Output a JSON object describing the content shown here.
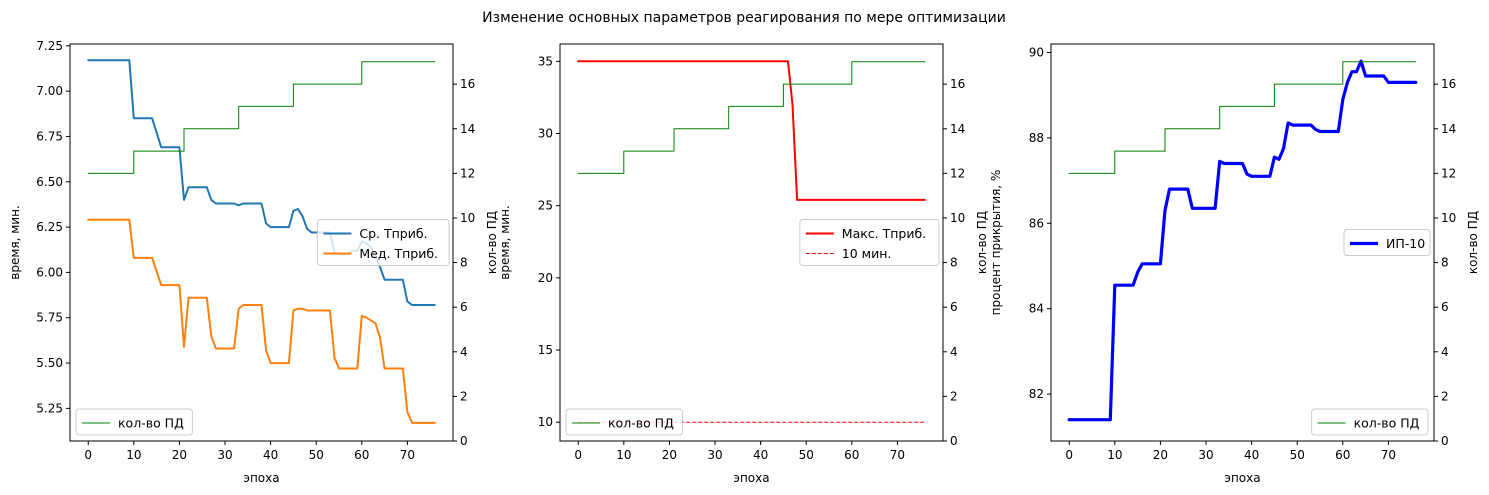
{
  "figure_title": "Изменение основных параметров реагирования по мере оптимизации",
  "chart_data": [
    {
      "type": "line",
      "xlabel": "эпоха",
      "ylabel": "время, мин.",
      "ylabel_right": "кол-во ПД",
      "xlim": [
        -4,
        80
      ],
      "ylim": [
        5.07,
        7.26
      ],
      "ylim_right": [
        0,
        17.8
      ],
      "xticks": [
        "0",
        "10",
        "20",
        "30",
        "40",
        "50",
        "60",
        "70"
      ],
      "yticks": [
        "5.25",
        "5.50",
        "5.75",
        "6.00",
        "6.25",
        "6.50",
        "6.75",
        "7.00",
        "7.25"
      ],
      "yticks_right": [
        "0",
        "2",
        "4",
        "6",
        "8",
        "10",
        "12",
        "14",
        "16"
      ],
      "legend_upper": "center-right",
      "legend_lower": "lower-left",
      "series": [
        {
          "name": "Ср. Тприб.",
          "color": "#1f77b4",
          "width": 2,
          "x": [
            0,
            9,
            10,
            14,
            16,
            20,
            21,
            22,
            26,
            27,
            28,
            32,
            33,
            34,
            38,
            39,
            40,
            44,
            45,
            46,
            47,
            48,
            49,
            53,
            54,
            55,
            57,
            58,
            59,
            60,
            61,
            62,
            64,
            65,
            69,
            70,
            71,
            76
          ],
          "y": [
            7.17,
            7.17,
            6.85,
            6.85,
            6.69,
            6.69,
            6.4,
            6.47,
            6.47,
            6.4,
            6.38,
            6.38,
            6.37,
            6.38,
            6.38,
            6.27,
            6.25,
            6.25,
            6.34,
            6.35,
            6.31,
            6.24,
            6.22,
            6.22,
            6.11,
            6.1,
            6.1,
            6.12,
            6.12,
            6.17,
            6.16,
            6.14,
            6.03,
            5.96,
            5.96,
            5.84,
            5.82,
            5.82
          ]
        },
        {
          "name": "Мед. Тприб.",
          "color": "#ff7f0e",
          "width": 2,
          "x": [
            0,
            9,
            10,
            14,
            16,
            20,
            21,
            22,
            26,
            27,
            28,
            32,
            33,
            34,
            38,
            39,
            40,
            44,
            45,
            46,
            47,
            48,
            53,
            54,
            55,
            59,
            60,
            61,
            63,
            64,
            65,
            69,
            70,
            71,
            76
          ],
          "y": [
            6.29,
            6.29,
            6.08,
            6.08,
            5.93,
            5.93,
            5.59,
            5.86,
            5.86,
            5.65,
            5.58,
            5.58,
            5.8,
            5.82,
            5.82,
            5.57,
            5.5,
            5.5,
            5.79,
            5.8,
            5.8,
            5.79,
            5.79,
            5.53,
            5.47,
            5.47,
            5.76,
            5.75,
            5.72,
            5.64,
            5.47,
            5.47,
            5.23,
            5.17,
            5.17
          ]
        },
        {
          "name": "кол-во ПД",
          "color": "#008000",
          "width": 1,
          "axis": "right",
          "step": true,
          "x": [
            0,
            10,
            21,
            33,
            45,
            60,
            76
          ],
          "y": [
            12,
            13,
            14,
            15,
            16,
            17,
            17
          ]
        }
      ]
    },
    {
      "type": "line",
      "xlabel": "эпоха",
      "ylabel": "время, мин.",
      "ylabel_right": "кол-во ПД",
      "xlim": [
        -4,
        80
      ],
      "ylim": [
        8.7,
        36.2
      ],
      "ylim_right": [
        0,
        17.8
      ],
      "xticks": [
        "0",
        "10",
        "20",
        "30",
        "40",
        "50",
        "60",
        "70"
      ],
      "yticks": [
        "10",
        "15",
        "20",
        "25",
        "30",
        "35"
      ],
      "yticks_right": [
        "0",
        "2",
        "4",
        "6",
        "8",
        "10",
        "12",
        "14",
        "16"
      ],
      "legend_upper": "center-right",
      "legend_lower": "lower-left",
      "series": [
        {
          "name": "Макс. Тприб.",
          "color": "#ff0000",
          "width": 2,
          "x": [
            0,
            46,
            47,
            48,
            76
          ],
          "y": [
            35,
            35,
            32,
            25.4,
            25.4
          ]
        },
        {
          "name": "10 мин.",
          "color": "#ff0000",
          "width": 1,
          "dashed": true,
          "x": [
            0,
            76
          ],
          "y": [
            10,
            10
          ]
        },
        {
          "name": "кол-во ПД",
          "color": "#008000",
          "width": 1,
          "axis": "right",
          "step": true,
          "x": [
            0,
            10,
            21,
            33,
            45,
            60,
            76
          ],
          "y": [
            12,
            13,
            14,
            15,
            16,
            17,
            17
          ]
        }
      ]
    },
    {
      "type": "line",
      "xlabel": "эпоха",
      "ylabel": "процент прикрытия, %",
      "ylabel_right": "кол-во ПД",
      "xlim": [
        -4,
        80
      ],
      "ylim": [
        80.9,
        90.2
      ],
      "ylim_right": [
        0,
        17.8
      ],
      "xticks": [
        "0",
        "10",
        "20",
        "30",
        "40",
        "50",
        "60",
        "70"
      ],
      "yticks": [
        "82",
        "84",
        "86",
        "88",
        "90"
      ],
      "yticks_right": [
        "0",
        "2",
        "4",
        "6",
        "8",
        "10",
        "12",
        "14",
        "16"
      ],
      "legend_upper": "center-right",
      "legend_lower": "lower-right",
      "series": [
        {
          "name": "ИП-10",
          "color": "#0000ff",
          "width": 3.2,
          "x": [
            0,
            9,
            10,
            14,
            15,
            16,
            20,
            21,
            22,
            26,
            27,
            28,
            32,
            33,
            34,
            38,
            39,
            40,
            44,
            45,
            46,
            47,
            48,
            49,
            53,
            54,
            55,
            59,
            60,
            61,
            62,
            63,
            64,
            65,
            69,
            70,
            71,
            76
          ],
          "y": [
            81.4,
            81.4,
            84.55,
            84.55,
            84.85,
            85.05,
            85.05,
            86.3,
            86.8,
            86.8,
            86.35,
            86.35,
            86.35,
            87.45,
            87.4,
            87.4,
            87.15,
            87.1,
            87.1,
            87.55,
            87.5,
            87.75,
            88.35,
            88.3,
            88.3,
            88.2,
            88.15,
            88.15,
            88.9,
            89.3,
            89.55,
            89.55,
            89.8,
            89.45,
            89.45,
            89.3,
            89.3,
            89.3
          ]
        },
        {
          "name": "кол-во ПД",
          "color": "#008000",
          "width": 1,
          "axis": "right",
          "step": true,
          "x": [
            0,
            10,
            21,
            33,
            45,
            60,
            76
          ],
          "y": [
            12,
            13,
            14,
            15,
            16,
            17,
            17
          ]
        }
      ]
    }
  ]
}
